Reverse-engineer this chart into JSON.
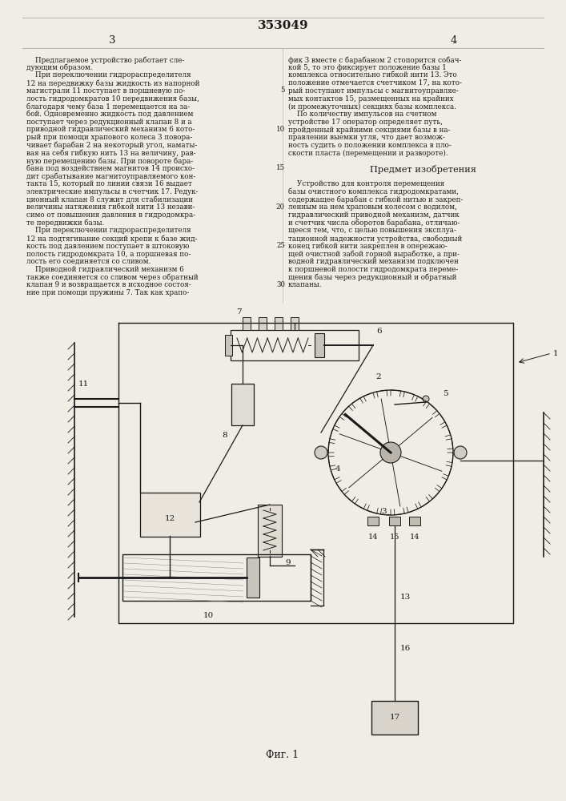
{
  "patent_number": "353049",
  "page_left": "3",
  "page_right": "4",
  "bg_color": "#f0ede6",
  "text_color": "#1a1a1a",
  "left_column_text": [
    "    Предлагаемое устройство работает сле-",
    "дующим образом.",
    "    При переключении гидрораспределителя",
    "12 на передвижку базы жидкость из напорной",
    "магистрали 11 поступает в поршневую по-",
    "лость гидродомкратов 10 передвижения базы,",
    "благодаря чему база 1 перемещается на за-",
    "бой. Одновременно жидкость под давлением",
    "поступает через редукционный клапан 8 и а",
    "приводной гидравлический механизм 6 кото-",
    "рый при помощи храпового колеса 3 повора-",
    "чивает барабан 2 на некоторый угол, наматы-",
    "вая на себя гибкую нить 13 на величину, рав-",
    "ную перемещению базы. При повороте бара-",
    "бана под воздействием магнитов 14 происхо-",
    "дит срабатывание магнитоуправляемого кон-",
    "такта 15, который по линии связи 16 выдает",
    "электрические импульсы в счетчик 17. Редук-",
    "ционный клапан 8 служит для стабилизации",
    "величины натяжения гибкой нити 13 незави-",
    "симо от повышения давления в гидродомкра-",
    "те передвижки базы.",
    "    При переключении гидрораспределителя",
    "12 на подтягивание секций крепи к базе жид-",
    "кость под давлением поступает в штоковую",
    "полость гидродомкрата 10, а поршневая по-",
    "лость его соединяется со сливом.",
    "    Приводной гидравлический механизм 6",
    "также соединяется со сливом через обратный",
    "клапан 9 и возвращается в исходное состоя-",
    "ние при помощи пружины 7. Так как храпо-"
  ],
  "right_column_text": [
    "фик 3 вместе с барабаном 2 стопорится собач-",
    "кой 5, то это фиксирует положение базы 1",
    "комплекса относительно гибкой нити 13. Это",
    "положение отмечается счетчиком 17, на кото-",
    "рый поступают импульсы с магнитоуправляе-",
    "мых контактов 15, размещенных на крайних",
    "(и промежуточных) секциях базы комплекса.",
    "    По количеству импульсов на счетном",
    "устройстве 17 оператор определяет путь,",
    "пройденный крайними секциями базы в на-",
    "правлении выемки угля, что дает возмож-",
    "ность судить о положении комплекса в пло-",
    "скости пласта (перемещении и развороте).",
    "",
    "Предмет изобретения",
    "",
    "    Устройство для контроля перемещения",
    "базы очистного комплекса гидродомкратами,",
    "содержащее барабан с гибкой нитью и закреп-",
    "ленным на нем храповым колесом с водилом,",
    "гидравлический приводной механизм, датчик",
    "и счетчик числа оборотов барабана, отличаю-",
    "щееся тем, что, с целью повышения эксплуа-",
    "тационной надежности устройства, свободный",
    "конец гибкой нити закреплен в опережаю-",
    "щей очистной забой горной выработке, а при-",
    "водной гидравлический механизм подключен",
    "к поршневой полости гидродомкрата переме-",
    "щения базы через редукционный и обратный",
    "клапаны."
  ],
  "line_number_rows": [
    4,
    9,
    14,
    19,
    24,
    29
  ],
  "line_numbers": [
    5,
    10,
    15,
    20,
    25,
    30
  ],
  "figure_caption": "Фиг. 1"
}
